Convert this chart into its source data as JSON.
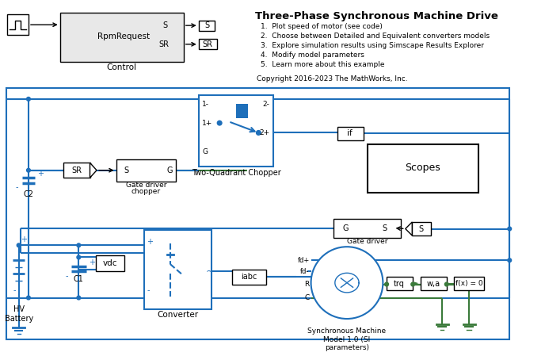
{
  "title": "Three-Phase Synchronous Machine Drive",
  "bg_color": "#ffffff",
  "blue": "#1e6fba",
  "green": "#3a7a3a",
  "black": "#000000",
  "gray_fill": "#e8e8e8",
  "notes": [
    "1.  Plot speed of motor (see code)",
    "2.  Choose between Detailed and Equivalent converters models",
    "3.  Explore simulation results using Simscape Results Explorer",
    "4.  Modify model parameters",
    "5.  Learn more about this example"
  ],
  "copyright": "Copyright 2016-2023 The MathWorks, Inc."
}
